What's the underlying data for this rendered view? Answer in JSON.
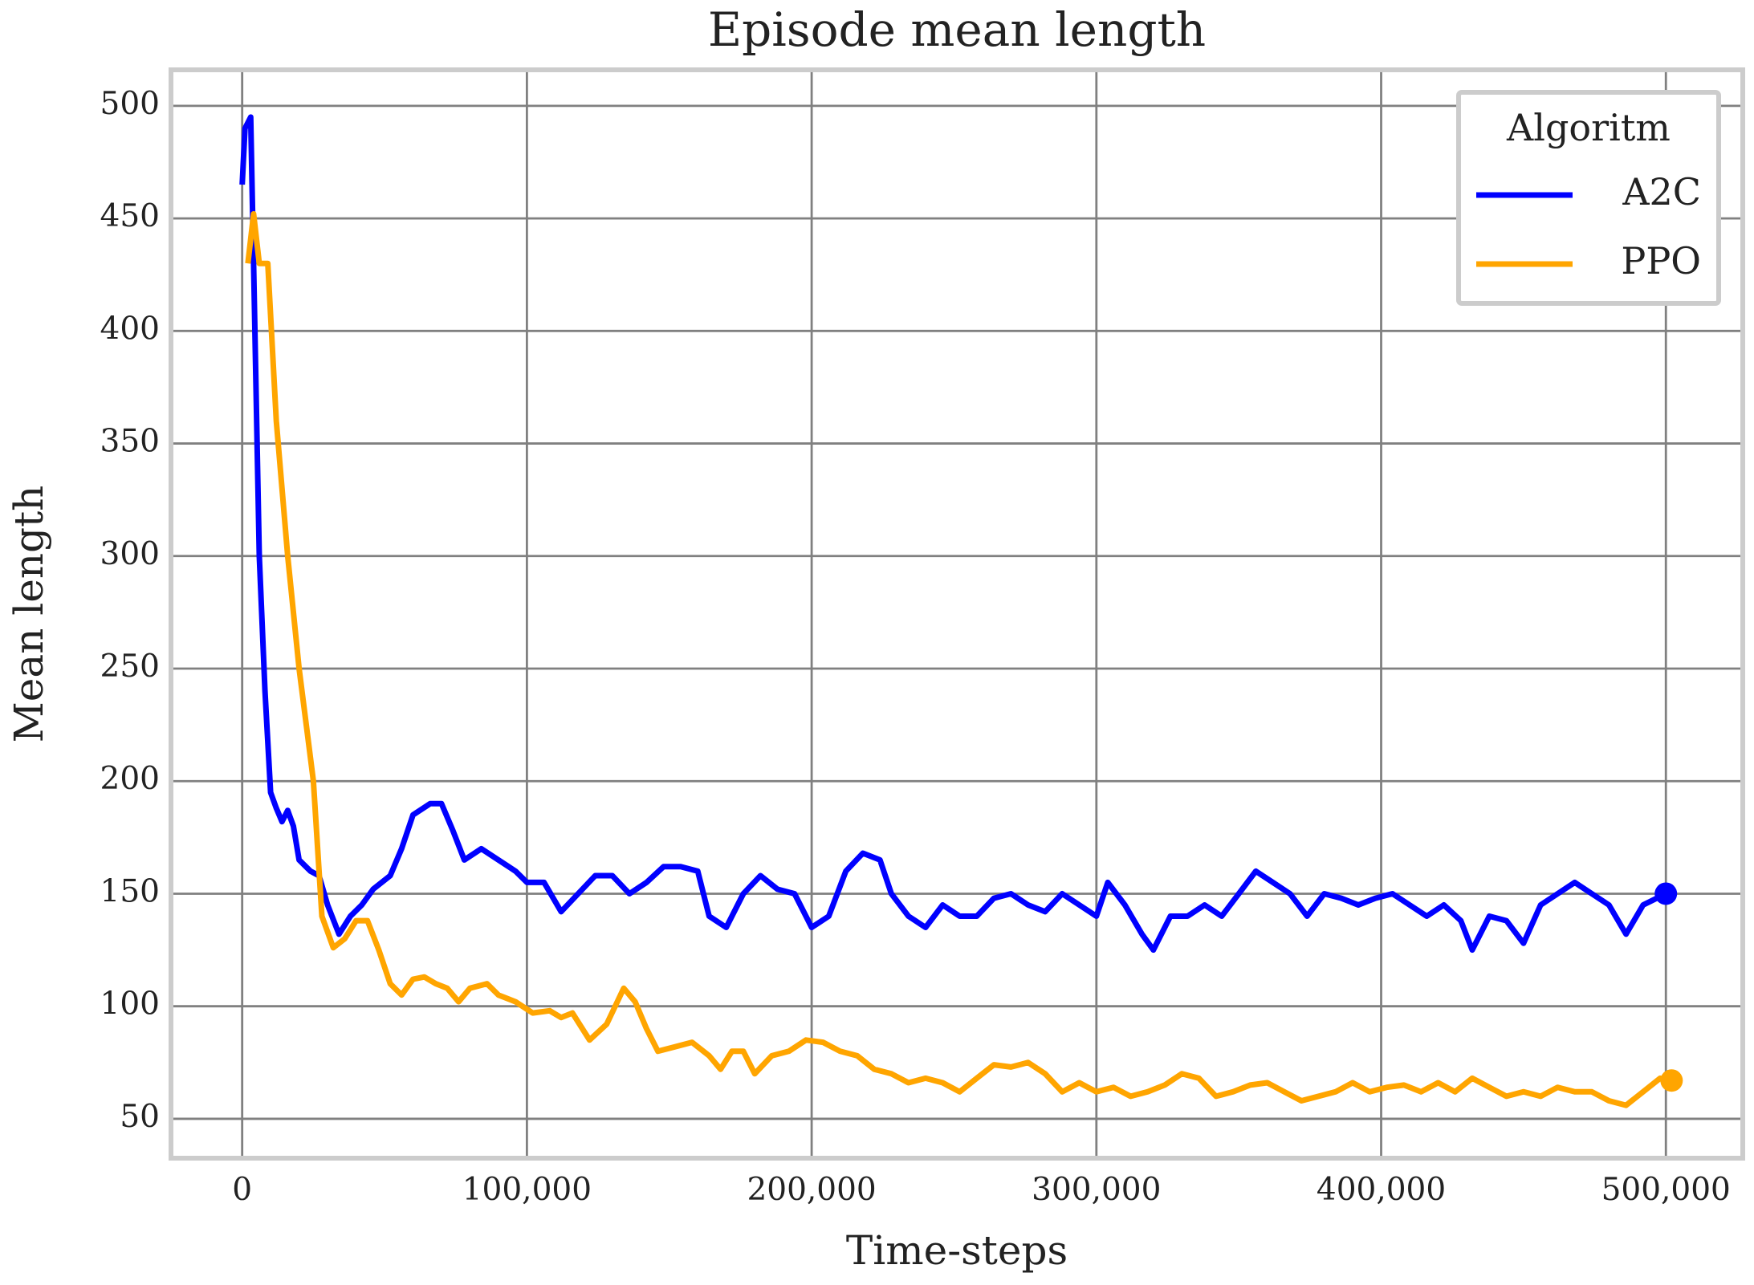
{
  "chart_data": {
    "type": "line",
    "title": "Episode mean length",
    "xlabel": "Time-steps",
    "ylabel": "Mean length",
    "legend_title": "Algoritm",
    "legend": "upper right",
    "grid": true,
    "end_marker": true,
    "xlim": [
      -25000,
      527000
    ],
    "ylim": [
      32.5,
      516
    ],
    "xticks": [
      0,
      {
        "value": 100000,
        "label": "100,000"
      },
      {
        "value": 200000,
        "label": "200,000"
      },
      {
        "value": 300000,
        "label": "300,000"
      },
      {
        "value": 400000,
        "label": "400,000"
      },
      {
        "value": 500000,
        "label": "500,000"
      }
    ],
    "yticks": [
      50,
      100,
      150,
      200,
      250,
      300,
      350,
      400,
      450,
      500
    ],
    "series": [
      {
        "name": "A2C",
        "color": "#0000ff",
        "x": [
          0,
          1000,
          3000,
          4000,
          6000,
          8000,
          10000,
          12000,
          14000,
          16000,
          18000,
          20000,
          24000,
          27000,
          30000,
          34000,
          38000,
          42000,
          46000,
          52000,
          56000,
          60000,
          66000,
          70000,
          74000,
          78000,
          84000,
          90000,
          96000,
          100000,
          106000,
          112000,
          118000,
          124000,
          130000,
          136000,
          142000,
          148000,
          154000,
          160000,
          164000,
          170000,
          176000,
          182000,
          188000,
          194000,
          200000,
          206000,
          212000,
          218000,
          224000,
          228000,
          234000,
          240000,
          246000,
          252000,
          258000,
          264000,
          270000,
          276000,
          282000,
          288000,
          294000,
          300000,
          304000,
          310000,
          316000,
          320000,
          326000,
          332000,
          338000,
          344000,
          350000,
          356000,
          362000,
          368000,
          374000,
          380000,
          386000,
          392000,
          398000,
          404000,
          410000,
          416000,
          422000,
          428000,
          432000,
          438000,
          444000,
          450000,
          456000,
          462000,
          468000,
          474000,
          480000,
          486000,
          492000,
          500000
        ],
        "values": [
          465,
          490,
          495,
          430,
          300,
          240,
          195,
          188,
          182,
          187,
          180,
          165,
          160,
          158,
          145,
          132,
          140,
          145,
          152,
          158,
          170,
          185,
          190,
          190,
          178,
          165,
          170,
          165,
          160,
          155,
          155,
          142,
          150,
          158,
          158,
          150,
          155,
          162,
          162,
          160,
          140,
          135,
          150,
          158,
          152,
          150,
          135,
          140,
          160,
          168,
          165,
          150,
          140,
          135,
          145,
          140,
          140,
          148,
          150,
          145,
          142,
          150,
          145,
          140,
          155,
          145,
          132,
          125,
          140,
          140,
          145,
          140,
          150,
          160,
          155,
          150,
          140,
          150,
          148,
          145,
          148,
          150,
          145,
          140,
          145,
          138,
          125,
          140,
          138,
          128,
          145,
          150,
          155,
          150,
          145,
          132,
          145,
          150
        ]
      },
      {
        "name": "PPO",
        "color": "#ffa500",
        "x": [
          2000,
          4000,
          6000,
          9000,
          12000,
          16000,
          20000,
          23000,
          25000,
          28000,
          32000,
          36000,
          40000,
          44000,
          48000,
          52000,
          56000,
          60000,
          64000,
          68000,
          72000,
          76000,
          80000,
          86000,
          90000,
          96000,
          102000,
          108000,
          112000,
          116000,
          122000,
          128000,
          134000,
          138000,
          142000,
          146000,
          152000,
          158000,
          164000,
          168000,
          172000,
          176000,
          180000,
          186000,
          192000,
          198000,
          204000,
          210000,
          216000,
          222000,
          228000,
          234000,
          240000,
          246000,
          252000,
          258000,
          264000,
          270000,
          276000,
          282000,
          288000,
          294000,
          300000,
          306000,
          312000,
          318000,
          324000,
          330000,
          336000,
          342000,
          348000,
          354000,
          360000,
          366000,
          372000,
          378000,
          384000,
          390000,
          396000,
          402000,
          408000,
          414000,
          420000,
          426000,
          432000,
          438000,
          444000,
          450000,
          456000,
          462000,
          468000,
          474000,
          480000,
          486000,
          492000,
          498000,
          502000
        ],
        "values": [
          430,
          452,
          430,
          430,
          360,
          300,
          250,
          220,
          200,
          140,
          126,
          130,
          138,
          138,
          125,
          110,
          105,
          112,
          113,
          110,
          108,
          102,
          108,
          110,
          105,
          102,
          97,
          98,
          95,
          97,
          85,
          92,
          108,
          102,
          90,
          80,
          82,
          84,
          78,
          72,
          80,
          80,
          70,
          78,
          80,
          85,
          84,
          80,
          78,
          72,
          70,
          66,
          68,
          66,
          62,
          68,
          74,
          73,
          75,
          70,
          62,
          66,
          62,
          64,
          60,
          62,
          65,
          70,
          68,
          60,
          62,
          65,
          66,
          62,
          58,
          60,
          62,
          66,
          62,
          64,
          65,
          62,
          66,
          62,
          68,
          64,
          60,
          62,
          60,
          64,
          62,
          62,
          58,
          56,
          62,
          68,
          67
        ]
      }
    ]
  }
}
